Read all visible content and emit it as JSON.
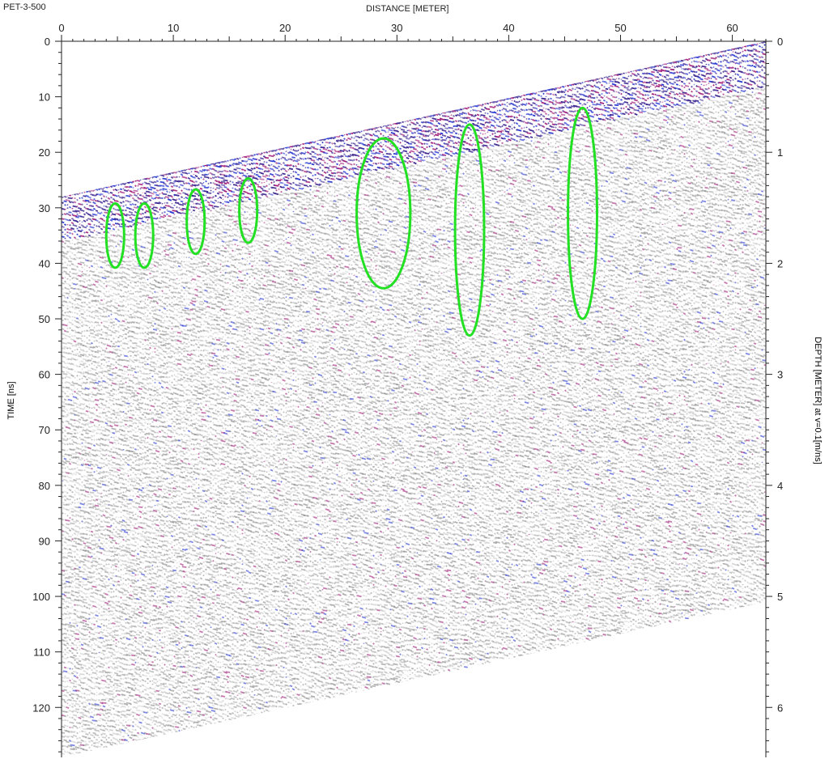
{
  "profile_title": "PET-3-500",
  "chart_data": {
    "type": "heatmap",
    "title": "PET-3-500",
    "xlabel": "DISTANCE [METER]",
    "ylabel": "TIME [ns]",
    "y2label": "DEPTH [METER] at v=0.1[m/ns]",
    "xlim": [
      0,
      63
    ],
    "ylim": [
      0,
      129
    ],
    "y2lim": [
      0,
      6.45
    ],
    "x_ticks": [
      0,
      10,
      20,
      30,
      40,
      50,
      60
    ],
    "y_ticks": [
      0,
      10,
      20,
      30,
      40,
      50,
      60,
      70,
      80,
      90,
      100,
      110,
      120
    ],
    "y2_ticks": [
      0,
      1,
      2,
      3,
      4,
      5,
      6
    ],
    "data_top_line": {
      "x": [
        0,
        63
      ],
      "time": [
        28,
        0
      ]
    },
    "data_bottom_line": {
      "x": [
        0,
        63
      ],
      "time": [
        129,
        101
      ]
    },
    "colors": {
      "grayscale": "#7a7a7a",
      "strong_reflection": "#3b2590",
      "positive": "#2a3ad0",
      "negative": "#a0207a",
      "annotation": "#22e022"
    },
    "annotations": [
      {
        "shape": "ellipse",
        "x_center": 4.8,
        "time_center": 35,
        "x_radius": 0.8,
        "time_radius": 5.8
      },
      {
        "shape": "ellipse",
        "x_center": 7.4,
        "time_center": 35,
        "x_radius": 0.8,
        "time_radius": 5.8
      },
      {
        "shape": "ellipse",
        "x_center": 12.0,
        "time_center": 32.5,
        "x_radius": 0.8,
        "time_radius": 5.8
      },
      {
        "shape": "ellipse",
        "x_center": 16.7,
        "time_center": 30.5,
        "x_radius": 0.8,
        "time_radius": 5.8
      },
      {
        "shape": "ellipse",
        "x_center": 28.8,
        "time_center": 31,
        "x_radius": 2.4,
        "time_radius": 13.5
      },
      {
        "shape": "ellipse",
        "x_center": 36.5,
        "time_center": 34,
        "x_radius": 1.3,
        "time_radius": 19
      },
      {
        "shape": "ellipse",
        "x_center": 46.6,
        "time_center": 31,
        "x_radius": 1.3,
        "time_radius": 19
      }
    ]
  }
}
